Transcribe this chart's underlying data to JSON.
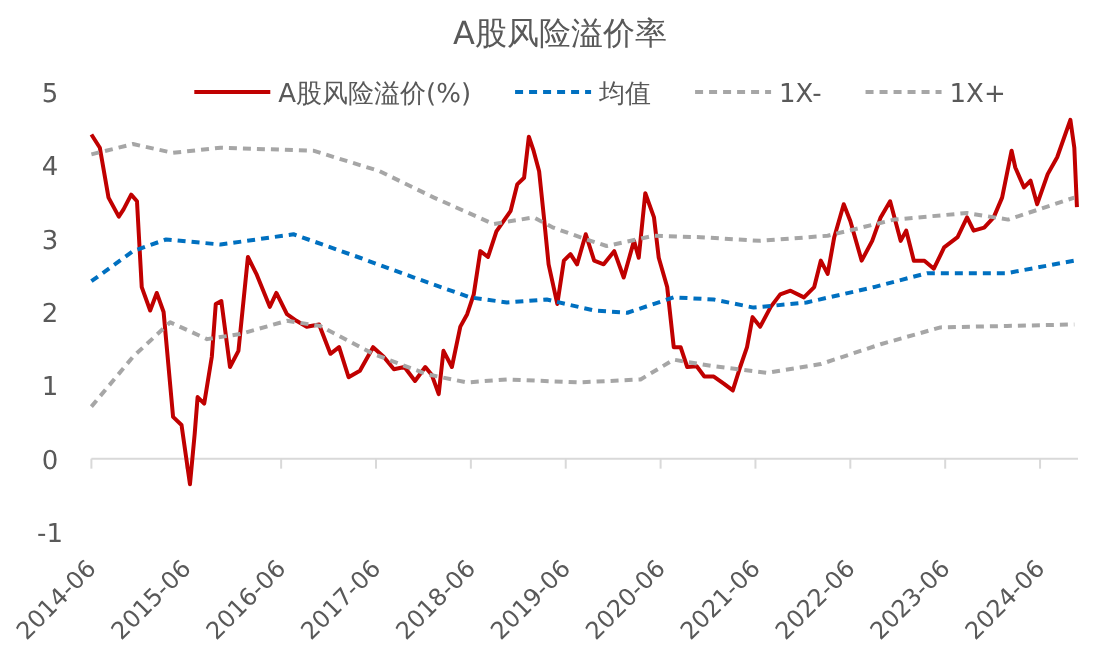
{
  "chart_data": {
    "type": "line",
    "title": "A股风险溢价率",
    "legend": "top",
    "marker": "none",
    "xlim": [
      "2014-06-01",
      "2024-10-25"
    ],
    "ylim": [
      -1,
      5
    ],
    "yticks": [
      -1,
      0,
      1,
      2,
      3,
      4,
      5
    ],
    "xticks": [
      "2014-06",
      "2015-06",
      "2016-06",
      "2017-06",
      "2018-06",
      "2019-06",
      "2020-06",
      "2021-06",
      "2022-06",
      "2023-06",
      "2024-06"
    ],
    "series": [
      {
        "name": "A股风险溢价(%)",
        "color": "#c00000",
        "line_style": "solid",
        "x": [
          "2014-06-01",
          "2014-07-03",
          "2014-08-06",
          "2014-09-15",
          "2014-10-03",
          "2014-11-02",
          "2014-11-24",
          "2014-12-12",
          "2015-01-14",
          "2015-02-09",
          "2015-03-05",
          "2015-04-11",
          "2015-05-13",
          "2015-06-15",
          "2015-07-03",
          "2015-07-14",
          "2015-08-09",
          "2015-09-08",
          "2015-09-23",
          "2015-10-14",
          "2015-11-17",
          "2015-12-19",
          "2016-01-25",
          "2016-02-27",
          "2016-04-18",
          "2016-05-13",
          "2016-06-23",
          "2016-07-29",
          "2016-09-08",
          "2016-10-25",
          "2016-12-08",
          "2017-01-11",
          "2017-02-17",
          "2017-03-30",
          "2017-05-20",
          "2017-06-30",
          "2017-08-09",
          "2017-09-19",
          "2017-10-29",
          "2017-12-08",
          "2018-01-03",
          "2018-01-29",
          "2018-02-17",
          "2018-03-19",
          "2018-04-21",
          "2018-05-17",
          "2018-06-12",
          "2018-07-07",
          "2018-08-06",
          "2018-09-08",
          "2018-11-02",
          "2018-11-27",
          "2018-12-23",
          "2019-01-11",
          "2019-01-29",
          "2019-02-20",
          "2019-03-08",
          "2019-03-26",
          "2019-04-29",
          "2019-05-24",
          "2019-06-19",
          "2019-07-14",
          "2019-08-17",
          "2019-09-19",
          "2019-10-25",
          "2019-12-05",
          "2020-01-11",
          "2020-02-20",
          "2020-03-08",
          "2020-04-03",
          "2020-05-06",
          "2020-05-24",
          "2020-06-26",
          "2020-07-21",
          "2020-08-17",
          "2020-09-12",
          "2020-10-18",
          "2020-11-17",
          "2020-12-23",
          "2021-02-02",
          "2021-03-05",
          "2021-04-03",
          "2021-04-29",
          "2021-05-20",
          "2021-06-19",
          "2021-07-29",
          "2021-09-05",
          "2021-10-14",
          "2021-12-05",
          "2022-01-14",
          "2022-02-09",
          "2022-03-05",
          "2022-03-30",
          "2022-05-06",
          "2022-06-01",
          "2022-07-14",
          "2022-08-24",
          "2022-09-26",
          "2022-11-02",
          "2022-12-12",
          "2023-01-03",
          "2023-02-02",
          "2023-03-12",
          "2023-04-18",
          "2023-05-27",
          "2023-07-18",
          "2023-08-24",
          "2023-09-19",
          "2023-10-29",
          "2023-12-05",
          "2024-01-07",
          "2024-02-13",
          "2024-02-27",
          "2024-03-30",
          "2024-04-25",
          "2024-05-20",
          "2024-06-30",
          "2024-08-06",
          "2024-09-26",
          "2024-10-11",
          "2024-10-21"
        ],
        "values": [
          4.42,
          4.24,
          3.56,
          3.3,
          3.4,
          3.6,
          3.51,
          2.34,
          2.02,
          2.26,
          2.0,
          0.57,
          0.46,
          -0.35,
          0.34,
          0.84,
          0.75,
          1.39,
          2.11,
          2.15,
          1.25,
          1.47,
          2.75,
          2.52,
          2.07,
          2.26,
          1.97,
          1.88,
          1.8,
          1.83,
          1.43,
          1.52,
          1.11,
          1.2,
          1.52,
          1.39,
          1.22,
          1.25,
          1.06,
          1.25,
          1.14,
          0.88,
          1.47,
          1.25,
          1.8,
          1.97,
          2.24,
          2.83,
          2.75,
          3.1,
          3.38,
          3.74,
          3.83,
          4.39,
          4.2,
          3.92,
          3.3,
          2.65,
          2.11,
          2.7,
          2.79,
          2.65,
          3.06,
          2.7,
          2.65,
          2.83,
          2.47,
          2.97,
          2.74,
          3.62,
          3.29,
          2.74,
          2.34,
          1.52,
          1.52,
          1.25,
          1.26,
          1.12,
          1.12,
          1.02,
          0.93,
          1.25,
          1.52,
          1.93,
          1.8,
          2.07,
          2.24,
          2.29,
          2.2,
          2.34,
          2.7,
          2.52,
          3.02,
          3.47,
          3.24,
          2.7,
          2.97,
          3.29,
          3.51,
          2.97,
          3.11,
          2.7,
          2.7,
          2.59,
          2.88,
          3.02,
          3.29,
          3.11,
          3.15,
          3.29,
          3.56,
          4.2,
          3.97,
          3.7,
          3.79,
          3.47,
          3.88,
          4.11,
          4.62,
          4.24,
          3.43
        ]
      },
      {
        "name": "均值",
        "color": "#0070c0",
        "line_style": "dashed",
        "x": [
          "2014-06-01",
          "2014-11-09",
          "2015-03-15",
          "2015-10-11",
          "2016-07-18",
          "2017-03-30",
          "2017-10-25",
          "2018-05-27",
          "2018-10-18",
          "2019-03-19",
          "2019-09-19",
          "2020-01-25",
          "2020-07-21",
          "2020-12-23",
          "2021-05-24",
          "2021-12-15",
          "2022-09-01",
          "2023-03-23",
          "2024-01-25",
          "2024-10-11"
        ],
        "values": [
          2.42,
          2.83,
          2.99,
          2.92,
          3.06,
          2.74,
          2.47,
          2.2,
          2.13,
          2.17,
          2.02,
          1.99,
          2.2,
          2.17,
          2.06,
          2.13,
          2.34,
          2.53,
          2.53,
          2.7
        ]
      },
      {
        "name": "1X-",
        "color": "#a6a6a6",
        "line_style": "dashed",
        "x": [
          "2014-06-01",
          "2014-11-09",
          "2015-03-30",
          "2015-08-20",
          "2015-12-26",
          "2016-06-23",
          "2016-10-29",
          "2017-05-20",
          "2017-12-15",
          "2018-05-17",
          "2018-10-18",
          "2019-07-21",
          "2020-03-15",
          "2020-07-21",
          "2020-12-23",
          "2021-07-14",
          "2022-02-09",
          "2022-09-26",
          "2023-05-13",
          "2024-01-25",
          "2024-10-11"
        ],
        "values": [
          0.71,
          1.39,
          1.86,
          1.63,
          1.7,
          1.88,
          1.81,
          1.43,
          1.15,
          1.04,
          1.08,
          1.04,
          1.08,
          1.35,
          1.26,
          1.17,
          1.29,
          1.56,
          1.79,
          1.81,
          1.83
        ]
      },
      {
        "name": "1X+",
        "color": "#a6a6a6",
        "line_style": "dashed",
        "x": [
          "2014-06-01",
          "2014-11-09",
          "2015-04-11",
          "2015-10-11",
          "2016-10-03",
          "2017-06-15",
          "2018-01-11",
          "2018-08-27",
          "2019-01-29",
          "2019-04-14",
          "2019-07-25",
          "2019-11-06",
          "2020-05-06",
          "2020-11-02",
          "2021-06-19",
          "2022-03-05",
          "2022-11-17",
          "2023-08-24",
          "2024-01-30",
          "2024-10-11"
        ],
        "values": [
          4.15,
          4.29,
          4.17,
          4.24,
          4.2,
          3.92,
          3.56,
          3.2,
          3.29,
          3.15,
          3.02,
          2.9,
          3.04,
          3.02,
          2.97,
          3.04,
          3.26,
          3.35,
          3.26,
          3.56
        ]
      }
    ]
  }
}
